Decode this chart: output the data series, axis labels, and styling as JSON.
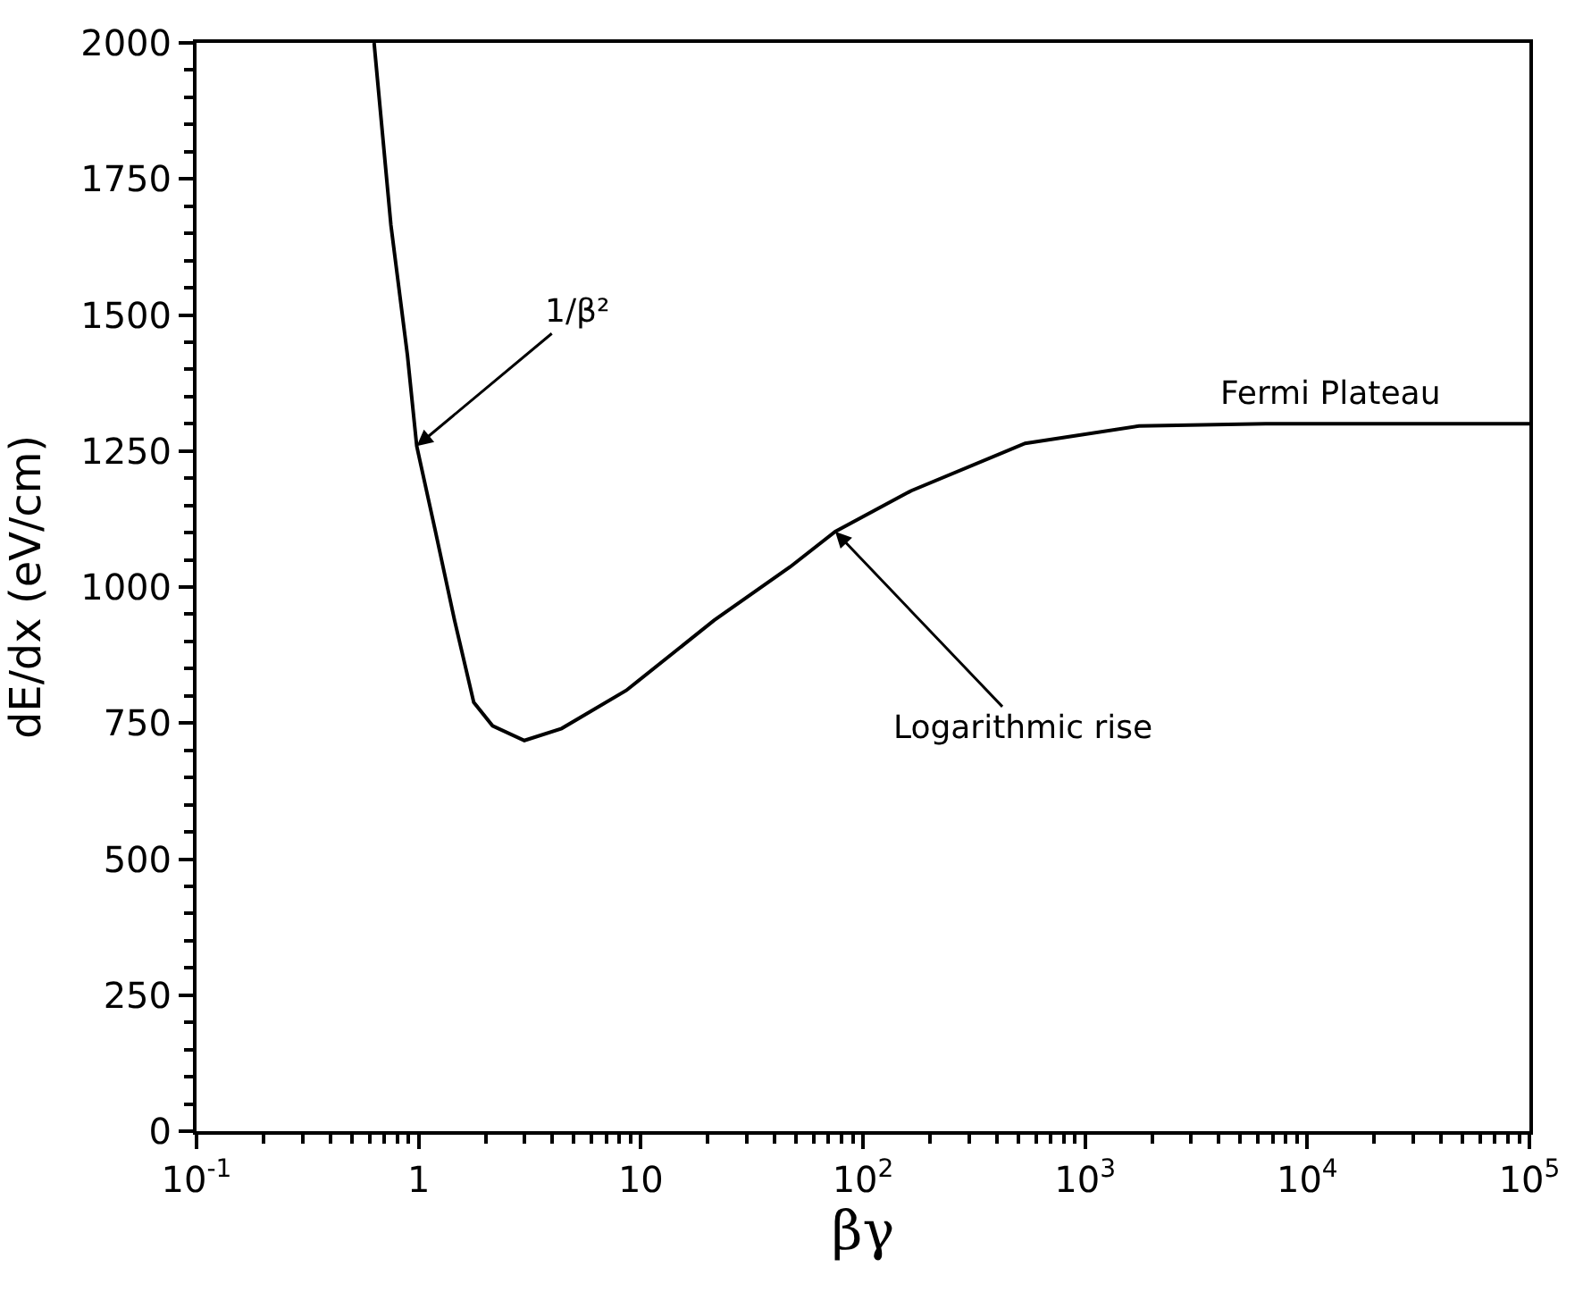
{
  "chart_data": {
    "type": "line",
    "xlabel": "βγ",
    "ylabel": "dE/dx (eV/cm)",
    "log": "x",
    "grid": false,
    "legend": false,
    "marker": "none",
    "line_style": "solid",
    "xlim": [
      0.1,
      100000
    ],
    "xticks": [
      {
        "value": 0.1,
        "label": "10$^{-1}$"
      },
      1,
      10,
      {
        "value": 100,
        "label": "10$^{2}$"
      },
      {
        "value": 1000,
        "label": "10$^{3}$"
      },
      {
        "value": 10000,
        "label": "10$^{4}$"
      },
      {
        "value": 100000,
        "label": "10$^{5}$"
      }
    ],
    "ylim": [
      0,
      2000
    ],
    "yticks": [
      0,
      250,
      500,
      750,
      1000,
      1250,
      1500,
      1750,
      2000
    ],
    "x": [
      0.63,
      0.75,
      0.89,
      0.98,
      1.19,
      1.45,
      1.77,
      2.15,
      2.99,
      4.4,
      8.6,
      21.4,
      47,
      75,
      165,
      537,
      1750,
      6500,
      100000
    ],
    "series": [
      {
        "color": "#000000",
        "values": [
          2000,
          1665,
          1426,
          1259,
          1102,
          939,
          788,
          745,
          718,
          740,
          810,
          939,
          1037,
          1102,
          1177,
          1264,
          1296,
          1300,
          1300
        ]
      }
    ],
    "annotations": [
      {
        "text": "1/β²",
        "x": 0.98,
        "y": 1259
      },
      {
        "text": "Logarithmic rise",
        "x": 75,
        "y": 1102
      },
      {
        "text": "Fermi Plateau",
        "x": 12600,
        "y": 1300
      }
    ]
  }
}
